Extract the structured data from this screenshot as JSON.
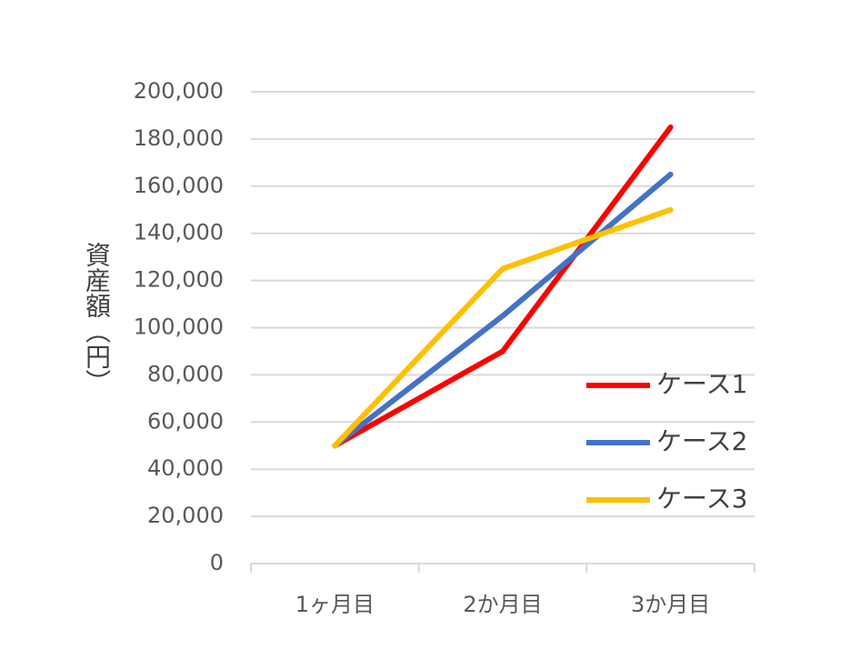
{
  "chart_data": {
    "type": "line",
    "y_label": "資産額（円）",
    "categories": [
      "1ヶ月目",
      "2か月目",
      "3か月目"
    ],
    "series": [
      {
        "name": "ケース1",
        "color": "#ff0000",
        "values": [
          50000,
          90000,
          185000
        ]
      },
      {
        "name": "ケース2",
        "color": "#4472c4",
        "values": [
          50000,
          105000,
          165000
        ]
      },
      {
        "name": "ケース3",
        "color": "#ffc000",
        "values": [
          50000,
          125000,
          150000
        ]
      }
    ],
    "ylim": [
      0,
      200000
    ],
    "yticks": [
      0,
      {
        "value": 20000,
        "label": "20,000"
      },
      {
        "value": 40000,
        "label": "40,000"
      },
      {
        "value": 60000,
        "label": "60,000"
      },
      {
        "value": 80000,
        "label": "80,000"
      },
      {
        "value": 100000,
        "label": "100,000"
      },
      {
        "value": 120000,
        "label": "120,000"
      },
      {
        "value": 140000,
        "label": "140,000"
      },
      {
        "value": 160000,
        "label": "160,000"
      },
      {
        "value": 180000,
        "label": "180,000"
      },
      {
        "value": 200000,
        "label": "200,000"
      }
    ],
    "grid": true,
    "legend": "right"
  }
}
